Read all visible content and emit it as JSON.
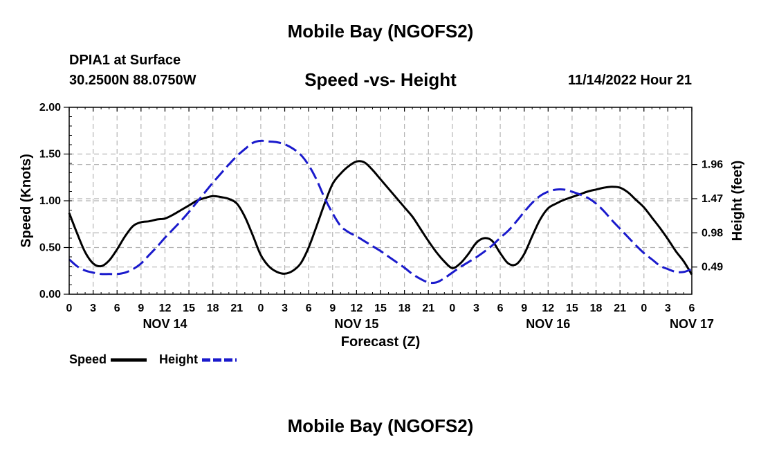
{
  "header": {
    "title": "Mobile Bay (NGOFS2)",
    "station": "DPIA1 at Surface",
    "coordinates": "30.2500N  88.0750W",
    "chart_title": "Speed -vs- Height",
    "timestamp": "11/14/2022 Hour 21"
  },
  "footer": {
    "title": "Mobile Bay (NGOFS2)"
  },
  "legend": {
    "speed_label": "Speed",
    "height_label": "Height"
  },
  "colors": {
    "speed": "#000000",
    "height": "#1a1acc",
    "grid": "#b4b4b4"
  },
  "chart_data": {
    "type": "line",
    "title": "Speed -vs- Height",
    "xlabel": "Forecast (Z)",
    "ylabel": "Speed (Knots)",
    "y2label": "Height (feet)",
    "xlim": [
      0,
      78
    ],
    "ylim": [
      0,
      2.0
    ],
    "y2lim": [
      0.1,
      2.78
    ],
    "x_ticks": [
      0,
      3,
      6,
      9,
      12,
      15,
      18,
      21,
      24,
      27,
      30,
      33,
      36,
      39,
      42,
      45,
      48,
      51,
      54,
      57,
      60,
      63,
      66,
      69,
      72,
      75,
      78
    ],
    "x_tick_labels": [
      "0",
      "3",
      "6",
      "9",
      "12",
      "15",
      "18",
      "21",
      "0",
      "3",
      "6",
      "9",
      "12",
      "15",
      "18",
      "21",
      "0",
      "3",
      "6",
      "9",
      "12",
      "15",
      "18",
      "21",
      "0",
      "3",
      "6"
    ],
    "date_labels": [
      {
        "x": 12,
        "label": "NOV 14"
      },
      {
        "x": 36,
        "label": "NOV 15"
      },
      {
        "x": 60,
        "label": "NOV 16"
      },
      {
        "x": 78,
        "label": "NOV 17"
      }
    ],
    "y_ticks": [
      0,
      0.5,
      1.0,
      1.5,
      2.0
    ],
    "y_tick_labels": [
      "0.00",
      "0.50",
      "1.00",
      "1.50",
      "2.00"
    ],
    "y2_ticks": [
      0.49,
      0.98,
      1.47,
      1.96
    ],
    "y2_tick_labels": [
      "0.49",
      "0.98",
      "1.47",
      "1.96"
    ],
    "series": [
      {
        "name": "Speed",
        "axis": "left",
        "style": "solid",
        "x": [
          0,
          1,
          2,
          3,
          4,
          5,
          6,
          7,
          8,
          9,
          10,
          11,
          12,
          13,
          14,
          15,
          16,
          17,
          18,
          19,
          20,
          21,
          22,
          23,
          24,
          25,
          26,
          27,
          28,
          29,
          30,
          31,
          32,
          33,
          34,
          35,
          36,
          37,
          38,
          39,
          40,
          41,
          42,
          43,
          44,
          45,
          46,
          47,
          48,
          49,
          50,
          51,
          52,
          53,
          54,
          55,
          56,
          57,
          58,
          59,
          60,
          61,
          62,
          63,
          64,
          65,
          66,
          67,
          68,
          69,
          70,
          71,
          72,
          73,
          74,
          75,
          76,
          77,
          78
        ],
        "values": [
          0.87,
          0.65,
          0.45,
          0.33,
          0.3,
          0.36,
          0.48,
          0.62,
          0.73,
          0.77,
          0.78,
          0.8,
          0.81,
          0.85,
          0.9,
          0.95,
          1.0,
          1.03,
          1.05,
          1.04,
          1.02,
          0.97,
          0.83,
          0.63,
          0.42,
          0.3,
          0.24,
          0.22,
          0.25,
          0.33,
          0.5,
          0.73,
          0.97,
          1.18,
          1.29,
          1.37,
          1.42,
          1.41,
          1.33,
          1.23,
          1.13,
          1.03,
          0.93,
          0.83,
          0.7,
          0.57,
          0.45,
          0.35,
          0.28,
          0.33,
          0.43,
          0.55,
          0.6,
          0.57,
          0.44,
          0.33,
          0.32,
          0.43,
          0.62,
          0.8,
          0.92,
          0.97,
          1.01,
          1.04,
          1.07,
          1.1,
          1.12,
          1.14,
          1.15,
          1.14,
          1.09,
          1.01,
          0.93,
          0.82,
          0.71,
          0.59,
          0.46,
          0.35,
          0.21
        ]
      },
      {
        "name": "Height",
        "axis": "right",
        "style": "dashed",
        "x": [
          0,
          1,
          2,
          3,
          4,
          5,
          6,
          7,
          8,
          9,
          10,
          11,
          12,
          13,
          14,
          15,
          16,
          17,
          18,
          19,
          20,
          21,
          22,
          23,
          24,
          25,
          26,
          27,
          28,
          29,
          30,
          31,
          32,
          33,
          34,
          35,
          36,
          37,
          38,
          39,
          40,
          41,
          42,
          43,
          44,
          45,
          46,
          47,
          48,
          49,
          50,
          51,
          52,
          53,
          54,
          55,
          56,
          57,
          58,
          59,
          60,
          61,
          62,
          63,
          64,
          65,
          66,
          67,
          68,
          69,
          70,
          71,
          72,
          73,
          74,
          75,
          76,
          77,
          78
        ],
        "values": [
          0.6,
          0.5,
          0.44,
          0.41,
          0.39,
          0.39,
          0.39,
          0.41,
          0.46,
          0.54,
          0.66,
          0.78,
          0.91,
          1.03,
          1.15,
          1.28,
          1.42,
          1.56,
          1.7,
          1.83,
          1.96,
          2.08,
          2.18,
          2.27,
          2.3,
          2.29,
          2.28,
          2.25,
          2.19,
          2.1,
          1.95,
          1.74,
          1.48,
          1.26,
          1.08,
          0.99,
          0.93,
          0.86,
          0.79,
          0.72,
          0.64,
          0.56,
          0.48,
          0.39,
          0.32,
          0.27,
          0.27,
          0.33,
          0.41,
          0.49,
          0.56,
          0.63,
          0.71,
          0.8,
          0.91,
          1.01,
          1.14,
          1.28,
          1.41,
          1.51,
          1.57,
          1.6,
          1.6,
          1.57,
          1.53,
          1.48,
          1.4,
          1.29,
          1.16,
          1.04,
          0.92,
          0.8,
          0.69,
          0.6,
          0.51,
          0.46,
          0.42,
          0.42,
          0.46
        ]
      }
    ]
  }
}
